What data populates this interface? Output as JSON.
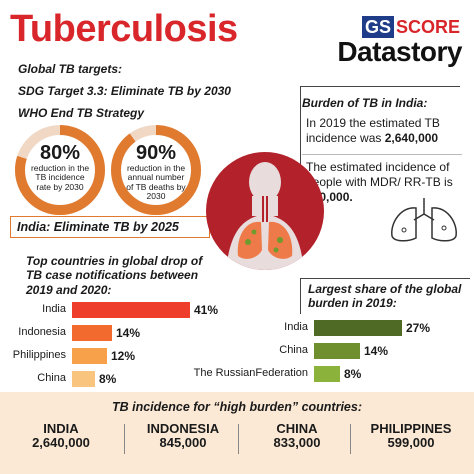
{
  "header": {
    "title": "Tuberculosis",
    "logo_gs": "GS",
    "logo_score": "SCORE",
    "logo_datastory": "Datastory"
  },
  "targets": {
    "heading": "Global TB targets:",
    "sdg": "SDG Target 3.3:  Eliminate TB by 2030",
    "who": "WHO End TB Strategy",
    "circles": [
      {
        "pct": "80%",
        "text": "reduction in the TB incidence rate by 2030"
      },
      {
        "pct": "90%",
        "text": "reduction in the annual number of TB deaths by 2030"
      }
    ],
    "india": "India: Eliminate TB by 2025"
  },
  "burden": {
    "title": "Burden of TB in India:",
    "line1_text": "In 2019 the estimated TB incidence was ",
    "line1_value": "2,640,000",
    "line2_text": "The estimated incidence of people with MDR/ RR-TB is ",
    "line2_value": "130,000."
  },
  "drop_chart": {
    "title": "Top countries in global drop of TB case notifications between 2019 and 2020:",
    "max_value": 41,
    "bars": [
      {
        "label": "India",
        "value": 41,
        "display": "41%",
        "color": "#ee3e2b"
      },
      {
        "label": "Indonesia",
        "value": 14,
        "display": "14%",
        "color": "#f26a2e"
      },
      {
        "label": "Philippines",
        "value": 12,
        "display": "12%",
        "color": "#f7a24a"
      },
      {
        "label": "China",
        "value": 8,
        "display": "8%",
        "color": "#f9c57e"
      }
    ]
  },
  "share_chart": {
    "title": "Largest share of the global burden in 2019:",
    "max_value": 27,
    "bars": [
      {
        "label": "India",
        "value": 27,
        "display": "27%",
        "color": "#4f6a24"
      },
      {
        "label": "China",
        "value": 14,
        "display": "14%",
        "color": "#6f8f2e"
      },
      {
        "label": "The RussianFederation",
        "value": 8,
        "display": "8%",
        "color": "#8bb23a"
      }
    ]
  },
  "high_burden": {
    "title": "TB incidence for “high burden” countries:",
    "countries": [
      {
        "name": "INDIA",
        "value": "2,640,000"
      },
      {
        "name": "INDONESIA",
        "value": "845,000"
      },
      {
        "name": "CHINA",
        "value": "833,000"
      },
      {
        "name": "PHILIPPINES",
        "value": "599,000"
      }
    ]
  },
  "colors": {
    "red": "#d8262a",
    "orange": "#e07a2e",
    "peach": "#fbe9d6"
  }
}
